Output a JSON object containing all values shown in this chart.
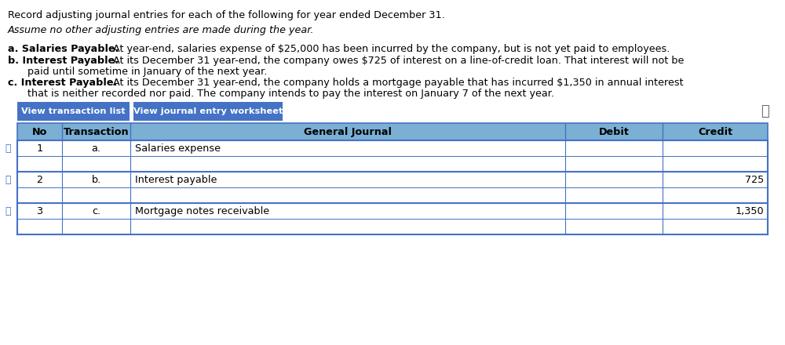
{
  "title_line1": "Record adjusting journal entries for each of the following for year ended December 31.",
  "title_line2": "Assume no other adjusting entries are made during the year.",
  "para_a_bold": "a. Salaries Payable.",
  "para_a_rest": " At year-end, salaries expense of $25,000 has been incurred by the company, but is not yet paid to employees.",
  "para_b_bold": "b. Interest Payable.",
  "para_b_rest1": " At its December 31 year-end, the company owes $725 of interest on a line-of-credit loan. That interest will not be",
  "para_b_rest2": "paid until sometime in January of the next year.",
  "para_c_bold": "c. Interest Payable.",
  "para_c_rest1": " At its December 31 year-end, the company holds a mortgage payable that has incurred $1,350 in annual interest",
  "para_c_rest2": "that is neither recorded nor paid. The company intends to pay the interest on January 7 of the next year.",
  "btn1_text": "View transaction list",
  "btn2_text": "View journal entry worksheet",
  "btn_bg": "#4472C4",
  "btn_text_color": "#ffffff",
  "header_bg": "#7BAFD4",
  "table_border_color": "#4472C4",
  "table_bg": "#ffffff",
  "col_headers": [
    "No",
    "Transaction",
    "General Journal",
    "Debit",
    "Credit"
  ],
  "rows": [
    {
      "no": "1",
      "trans": "a.",
      "journal": "Salaries expense",
      "debit": "",
      "credit": ""
    },
    {
      "no": "",
      "trans": "",
      "journal": "",
      "debit": "",
      "credit": ""
    },
    {
      "no": "2",
      "trans": "b.",
      "journal": "Interest payable",
      "debit": "",
      "credit": "725"
    },
    {
      "no": "",
      "trans": "",
      "journal": "",
      "debit": "",
      "credit": ""
    },
    {
      "no": "3",
      "trans": "c.",
      "journal": "Mortgage notes receivable",
      "debit": "",
      "credit": "1,350"
    },
    {
      "no": "",
      "trans": "",
      "journal": "",
      "debit": "",
      "credit": ""
    }
  ],
  "pencil_rows": [
    0,
    2,
    4
  ],
  "bg_color": "#ffffff",
  "text_fontsize": 9.2,
  "table_fontsize": 9.2
}
